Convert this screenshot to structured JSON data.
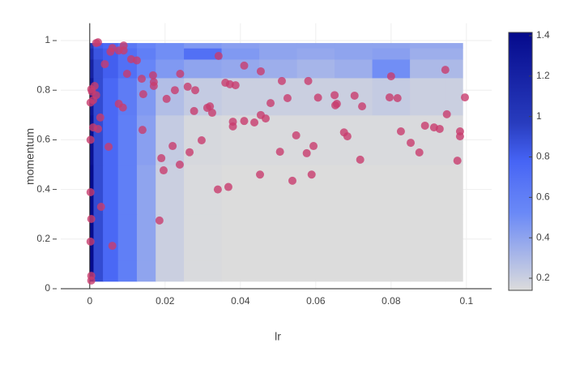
{
  "chart_data": {
    "type": "contour",
    "x_label": "lr",
    "y_label": "momentum",
    "xlim": [
      -0.0077,
      0.1067
    ],
    "ylim": [
      0,
      1.07
    ],
    "xticks": [
      0,
      0.02,
      0.04,
      0.06,
      0.08,
      0.1
    ],
    "yticks": [
      0,
      0.2,
      0.4,
      0.6,
      0.8,
      1
    ],
    "grid": true,
    "contour": {
      "x": [
        0,
        0.002,
        0.005,
        0.01,
        0.015,
        0.02,
        0.03,
        0.04,
        0.05,
        0.06,
        0.07,
        0.08,
        0.09,
        0.099
      ],
      "y": [
        0.03,
        0.2,
        0.4,
        0.6,
        0.8,
        0.9,
        0.95,
        0.99
      ],
      "z": [
        [
          1.4,
          0.9,
          0.75,
          0.6,
          0.4,
          0.2,
          0.15,
          0.14,
          0.14,
          0.14,
          0.14,
          0.14,
          0.14,
          0.14
        ],
        [
          1.4,
          0.9,
          0.75,
          0.6,
          0.4,
          0.2,
          0.15,
          0.14,
          0.14,
          0.14,
          0.14,
          0.14,
          0.14,
          0.14
        ],
        [
          1.4,
          0.9,
          0.75,
          0.6,
          0.4,
          0.2,
          0.15,
          0.14,
          0.14,
          0.14,
          0.14,
          0.14,
          0.14,
          0.14
        ],
        [
          1.35,
          0.9,
          0.75,
          0.6,
          0.42,
          0.22,
          0.16,
          0.15,
          0.15,
          0.15,
          0.15,
          0.15,
          0.15,
          0.15
        ],
        [
          1.3,
          0.9,
          0.75,
          0.62,
          0.45,
          0.28,
          0.22,
          0.2,
          0.2,
          0.2,
          0.2,
          0.22,
          0.2,
          0.2
        ],
        [
          1.2,
          0.9,
          0.8,
          0.7,
          0.55,
          0.45,
          0.4,
          0.38,
          0.35,
          0.32,
          0.35,
          0.5,
          0.3,
          0.3
        ],
        [
          1.1,
          0.85,
          0.8,
          0.7,
          0.6,
          0.5,
          0.7,
          0.45,
          0.4,
          0.38,
          0.4,
          0.42,
          0.35,
          0.35
        ],
        [
          1.0,
          0.8,
          0.75,
          0.65,
          0.55,
          0.5,
          0.45,
          0.42,
          0.4,
          0.4,
          0.4,
          0.4,
          0.38,
          0.38
        ]
      ],
      "zlim": [
        0.14,
        1.416
      ],
      "zticks": [
        0.2,
        0.4,
        0.6,
        0.8,
        1,
        1.2,
        1.4
      ],
      "colorscale": [
        [
          0,
          "rgb(220,220,220)"
        ],
        [
          0.3,
          "rgb(106,137,247)"
        ],
        [
          0.4,
          "rgb(90,120,245)"
        ],
        [
          0.5,
          "rgb(70,100,245)"
        ],
        [
          0.65,
          "rgb(40,60,190)"
        ],
        [
          1,
          "rgb(5,10,140)"
        ]
      ]
    },
    "scatter": {
      "color": "rgb(200,60,110)",
      "x": [
        0.0017,
        0.0022,
        0.009,
        0.006,
        0.0077,
        0.009,
        0.0055,
        0.004,
        0.011,
        0.0125,
        0.0099,
        0.0138,
        0.0168,
        0.017,
        0.017,
        0.024,
        0.0226,
        0.026,
        0.028,
        0.0204,
        0.0142,
        0.0004,
        0.0013,
        0.0006,
        0.0017,
        0.0002,
        0.0009,
        0.0077,
        0.0088,
        0.0028,
        0.0009,
        0.0022,
        0.014,
        0.0002,
        0.005,
        0.019,
        0.0196,
        0.022,
        0.0239,
        0.0265,
        0.0277,
        0.0297,
        0.0312,
        0.0319,
        0.0325,
        0.0342,
        0.036,
        0.0372,
        0.0387,
        0.038,
        0.038,
        0.041,
        0.041,
        0.0437,
        0.0454,
        0.0454,
        0.0467,
        0.048,
        0.051,
        0.0525,
        0.0505,
        0.0538,
        0.0548,
        0.058,
        0.0576,
        0.0594,
        0.0589,
        0.0606,
        0.0452,
        0.034,
        0.0368,
        0.0185,
        0.065,
        0.0652,
        0.0656,
        0.0675,
        0.0684,
        0.0703,
        0.0723,
        0.0718,
        0.0796,
        0.08,
        0.0817,
        0.0826,
        0.0852,
        0.0875,
        0.089,
        0.0914,
        0.0929,
        0.0944,
        0.0948,
        0.0983,
        0.0983,
        0.0976,
        0.0996,
        0.0002,
        0.003,
        0.0004,
        0.0002,
        0.006,
        0.0004,
        0.0004
      ],
      "y": [
        0.99,
        0.993,
        0.98,
        0.97,
        0.96,
        0.96,
        0.955,
        0.905,
        0.925,
        0.92,
        0.866,
        0.846,
        0.86,
        0.833,
        0.817,
        0.866,
        0.8,
        0.814,
        0.8,
        0.765,
        0.784,
        0.804,
        0.817,
        0.794,
        0.78,
        0.75,
        0.76,
        0.745,
        0.73,
        0.69,
        0.65,
        0.644,
        0.64,
        0.6,
        0.572,
        0.526,
        0.477,
        0.575,
        0.5,
        0.55,
        0.716,
        0.598,
        0.729,
        0.735,
        0.709,
        0.938,
        0.83,
        0.824,
        0.82,
        0.673,
        0.654,
        0.899,
        0.676,
        0.67,
        0.876,
        0.7,
        0.686,
        0.748,
        0.837,
        0.768,
        0.552,
        0.435,
        0.618,
        0.837,
        0.546,
        0.575,
        0.46,
        0.77,
        0.46,
        0.4,
        0.41,
        0.275,
        0.78,
        0.739,
        0.745,
        0.63,
        0.614,
        0.778,
        0.735,
        0.52,
        0.771,
        0.856,
        0.768,
        0.634,
        0.588,
        0.549,
        0.657,
        0.65,
        0.644,
        0.882,
        0.703,
        0.634,
        0.614,
        0.516,
        0.771,
        0.389,
        0.33,
        0.281,
        0.19,
        0.173,
        0.052,
        0.033
      ]
    }
  }
}
